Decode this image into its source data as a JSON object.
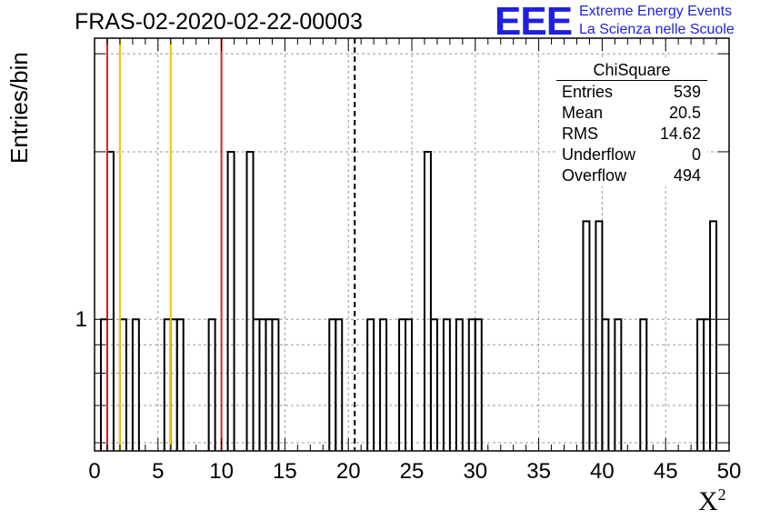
{
  "title": "FRAS-02-2020-02-22-00003",
  "logo": {
    "mark": "EEE",
    "line1": "Extreme Energy Events",
    "line2": "La Scienza nelle Scuole"
  },
  "stats": {
    "title": "ChiSquare",
    "rows": [
      {
        "label": "Entries",
        "value": "539"
      },
      {
        "label": "Mean",
        "value": "20.5"
      },
      {
        "label": "RMS",
        "value": "14.62"
      },
      {
        "label": "Underflow",
        "value": "0"
      },
      {
        "label": "Overflow",
        "value": "494"
      }
    ]
  },
  "colors": {
    "red": "#e02020",
    "yellow": "#f5c400",
    "dashed": "#000000",
    "logo": "#1f1fe0"
  },
  "chart_data": {
    "type": "bar",
    "title": "FRAS-02-2020-02-22-00003",
    "xlabel": "X²",
    "ylabel": "Entries/bin",
    "xlim": [
      0,
      50
    ],
    "ylim": [
      0.58,
      3.2
    ],
    "ylog": true,
    "grid": true,
    "bin_width": 0.5,
    "x_ticks": [
      0,
      5,
      10,
      15,
      20,
      25,
      30,
      35,
      40,
      45,
      50
    ],
    "y_tick_labels": [
      {
        "value": 1,
        "label": "1"
      }
    ],
    "bins": [
      {
        "x": 0.5,
        "count": 1
      },
      {
        "x": 1.0,
        "count": 2
      },
      {
        "x": 2.0,
        "count": 1
      },
      {
        "x": 3.0,
        "count": 1
      },
      {
        "x": 5.5,
        "count": 1
      },
      {
        "x": 6.0,
        "count": 1
      },
      {
        "x": 6.5,
        "count": 1
      },
      {
        "x": 9.0,
        "count": 1
      },
      {
        "x": 10.5,
        "count": 2
      },
      {
        "x": 12.0,
        "count": 2
      },
      {
        "x": 12.5,
        "count": 1
      },
      {
        "x": 13.0,
        "count": 1
      },
      {
        "x": 13.5,
        "count": 1
      },
      {
        "x": 14.0,
        "count": 1
      },
      {
        "x": 18.5,
        "count": 1
      },
      {
        "x": 19.0,
        "count": 1
      },
      {
        "x": 21.5,
        "count": 1
      },
      {
        "x": 22.5,
        "count": 1
      },
      {
        "x": 24.0,
        "count": 1
      },
      {
        "x": 24.5,
        "count": 1
      },
      {
        "x": 26.0,
        "count": 2
      },
      {
        "x": 26.5,
        "count": 1
      },
      {
        "x": 27.5,
        "count": 1
      },
      {
        "x": 28.5,
        "count": 1
      },
      {
        "x": 29.5,
        "count": 1
      },
      {
        "x": 30.0,
        "count": 1
      },
      {
        "x": 38.5,
        "count": 1.5
      },
      {
        "x": 39.5,
        "count": 1.5
      },
      {
        "x": 40.0,
        "count": 1
      },
      {
        "x": 41.0,
        "count": 1
      },
      {
        "x": 43.0,
        "count": 1
      },
      {
        "x": 47.5,
        "count": 1
      },
      {
        "x": 48.0,
        "count": 1
      },
      {
        "x": 48.5,
        "count": 1.5
      }
    ],
    "vertical_lines": [
      {
        "x": 1.0,
        "color": "red",
        "style": "solid"
      },
      {
        "x": 2.0,
        "color": "yellow",
        "style": "solid"
      },
      {
        "x": 6.0,
        "color": "yellow",
        "style": "solid"
      },
      {
        "x": 10.0,
        "color": "red",
        "style": "solid"
      },
      {
        "x": 20.5,
        "color": "black",
        "style": "dashed"
      }
    ]
  }
}
